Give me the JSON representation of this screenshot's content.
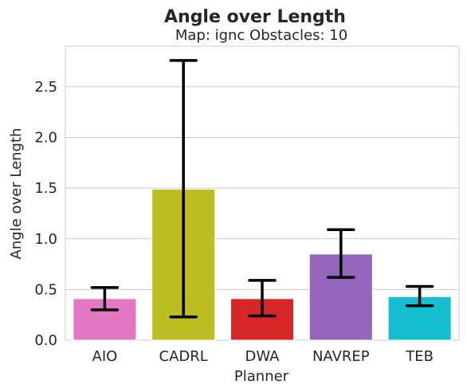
{
  "chart_data": {
    "type": "bar",
    "title": "Angle over Length",
    "subtitle": "Map: ignc Obstacles: 10",
    "xlabel": "Planner",
    "ylabel": "Angle over Length",
    "categories": [
      "AIO",
      "CADRL",
      "DWA",
      "NAVREP",
      "TEB"
    ],
    "values": [
      0.41,
      1.49,
      0.41,
      0.85,
      0.43
    ],
    "error_low": [
      0.3,
      0.23,
      0.24,
      0.62,
      0.34
    ],
    "error_high": [
      0.52,
      2.76,
      0.59,
      1.09,
      0.53
    ],
    "colors": [
      "#e377c2",
      "#bcbd22",
      "#d62728",
      "#9467bd",
      "#17becf"
    ],
    "ylim": [
      0,
      2.9
    ],
    "yticks": [
      0.0,
      0.5,
      1.0,
      1.5,
      2.0,
      2.5
    ],
    "ytick_labels": [
      "0.0",
      "0.5",
      "1.0",
      "1.5",
      "2.0",
      "2.5"
    ],
    "grid": "horizontal",
    "error_bar_color": "#000000",
    "grid_color": "#cccccc"
  }
}
